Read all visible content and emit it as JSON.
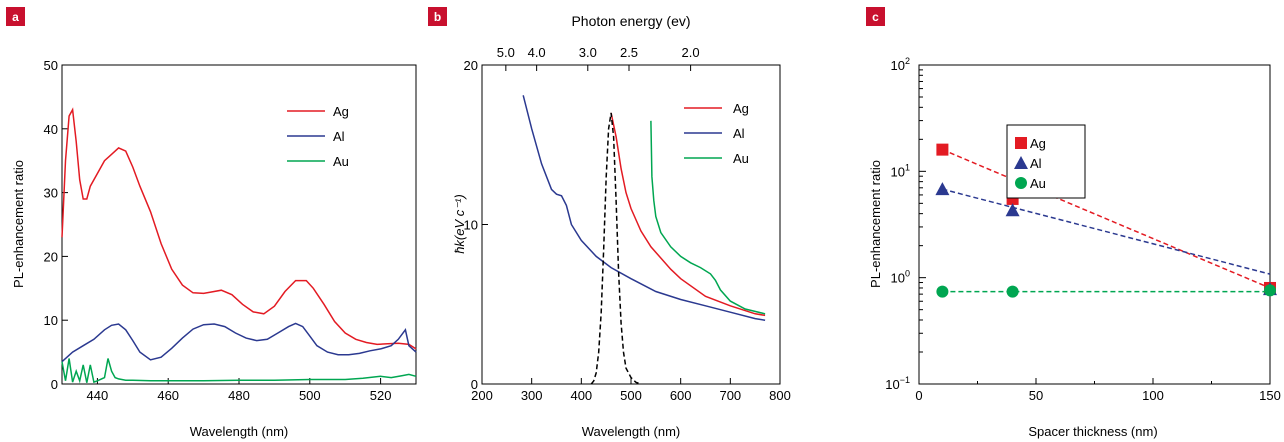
{
  "colors": {
    "ag": "#e31b23",
    "al": "#2b3990",
    "au": "#00a651",
    "badge": "#c8102e",
    "peak": "#000000"
  },
  "chart_data": [
    {
      "panel": "a",
      "type": "line",
      "xlabel": "Wavelength (nm)",
      "ylabel": "PL-enhancement ratio",
      "xlim": [
        430,
        530
      ],
      "ylim": [
        0,
        50
      ],
      "xticks": [
        440,
        460,
        480,
        500,
        520
      ],
      "yticks": [
        0,
        10,
        20,
        30,
        40,
        50
      ],
      "legend": "top-right",
      "series": [
        {
          "name": "Ag",
          "color": "#e31b23",
          "x": [
            430,
            431,
            432,
            433,
            434,
            435,
            436,
            437,
            438,
            440,
            442,
            444,
            446,
            448,
            450,
            452,
            455,
            458,
            461,
            464,
            467,
            470,
            472,
            475,
            478,
            481,
            484,
            487,
            490,
            493,
            496,
            499,
            501,
            504,
            507,
            510,
            513,
            516,
            519,
            522,
            525,
            528,
            530
          ],
          "y": [
            23,
            35,
            42,
            43,
            38,
            32,
            29,
            29,
            31,
            33,
            35,
            36,
            37,
            36.5,
            34,
            31,
            27,
            22,
            18,
            15.5,
            14.3,
            14.2,
            14.4,
            14.7,
            14,
            12.5,
            11.3,
            11,
            12.2,
            14.5,
            16.2,
            16.2,
            15,
            12.5,
            9.8,
            8,
            7,
            6.5,
            6.2,
            6.3,
            6.4,
            6.2,
            5.5
          ]
        },
        {
          "name": "Al",
          "color": "#2b3990",
          "x": [
            430,
            433,
            436,
            439,
            442,
            444,
            446,
            448,
            450,
            452,
            455,
            458,
            461,
            464,
            467,
            470,
            473,
            476,
            479,
            482,
            485,
            488,
            491,
            494,
            496,
            498,
            500,
            502,
            505,
            508,
            511,
            514,
            517,
            520,
            523,
            525,
            527,
            528,
            530
          ],
          "y": [
            3.5,
            5,
            6,
            7,
            8.5,
            9.2,
            9.4,
            8.5,
            6.8,
            5,
            3.8,
            4.2,
            5.6,
            7.2,
            8.6,
            9.3,
            9.4,
            9,
            8,
            7.2,
            6.8,
            7,
            8,
            9,
            9.5,
            9,
            7.5,
            6,
            5,
            4.6,
            4.6,
            4.8,
            5.2,
            5.5,
            6,
            7,
            8.5,
            6,
            5
          ]
        },
        {
          "name": "Au",
          "color": "#00a651",
          "x": [
            430,
            431,
            432,
            433,
            434,
            435,
            436,
            437,
            438,
            439,
            440,
            442,
            443,
            444,
            445,
            446,
            448,
            450,
            455,
            460,
            470,
            480,
            490,
            500,
            510,
            515,
            520,
            523,
            526,
            528,
            530
          ],
          "y": [
            3.5,
            0.5,
            4,
            0.3,
            2,
            0.5,
            3,
            0.2,
            3,
            0.3,
            0.5,
            1,
            4,
            2,
            1,
            0.8,
            0.6,
            0.6,
            0.5,
            0.5,
            0.5,
            0.6,
            0.6,
            0.7,
            0.7,
            0.9,
            1.2,
            1,
            1.3,
            1.5,
            1.2
          ]
        }
      ]
    },
    {
      "panel": "b",
      "type": "line",
      "title": "Photon energy (ev)",
      "xlabel": "Wavelength (nm)",
      "ylabel": "ħk(eV c⁻¹)",
      "xlim": [
        200,
        800
      ],
      "ylim": [
        0,
        20
      ],
      "xticks": [
        200,
        300,
        400,
        500,
        600,
        700,
        800
      ],
      "yticks": [
        0,
        10,
        20
      ],
      "top_ticks": [
        {
          "label": "5.0",
          "wavelength": 248
        },
        {
          "label": "4.0",
          "wavelength": 310
        },
        {
          "label": "3.0",
          "wavelength": 413
        },
        {
          "label": "2.5",
          "wavelength": 496
        },
        {
          "label": "2.0",
          "wavelength": 620
        }
      ],
      "legend": "top-right",
      "series": [
        {
          "name": "Ag",
          "color": "#e31b23",
          "x": [
            460,
            470,
            480,
            490,
            500,
            520,
            540,
            560,
            580,
            600,
            650,
            700,
            750,
            770
          ],
          "y": [
            17,
            15.5,
            13.5,
            12,
            11,
            9.6,
            8.6,
            7.9,
            7.2,
            6.6,
            5.5,
            4.9,
            4.4,
            4.3
          ]
        },
        {
          "name": "Al",
          "color": "#2b3990",
          "x": [
            283,
            300,
            320,
            340,
            350,
            360,
            370,
            380,
            400,
            430,
            460,
            500,
            550,
            600,
            650,
            700,
            750,
            770
          ],
          "y": [
            18.1,
            16,
            13.8,
            12.2,
            11.9,
            11.8,
            11.2,
            10,
            9,
            8,
            7.3,
            6.6,
            5.8,
            5.3,
            4.9,
            4.5,
            4.1,
            4
          ]
        },
        {
          "name": "Au",
          "color": "#00a651",
          "x": [
            540,
            542,
            546,
            550,
            560,
            580,
            600,
            620,
            640,
            660,
            670,
            680,
            700,
            730,
            770
          ],
          "y": [
            16.5,
            13,
            11.5,
            10.5,
            9.5,
            8.6,
            8,
            7.6,
            7.3,
            6.9,
            6.5,
            5.9,
            5.2,
            4.7,
            4.4
          ]
        },
        {
          "name": "",
          "color": "#000000",
          "dashed": true,
          "x": [
            420,
            425,
            430,
            435,
            440,
            445,
            450,
            455,
            460,
            465,
            470,
            475,
            480,
            485,
            490,
            500,
            510,
            520
          ],
          "y": [
            0,
            0.2,
            0.7,
            2,
            4.5,
            8.5,
            13,
            16,
            17,
            15.5,
            11.5,
            7,
            3.8,
            2,
            1,
            0.4,
            0.1,
            0
          ]
        }
      ]
    },
    {
      "panel": "c",
      "type": "scatter",
      "xlabel": "Spacer thickness (nm)",
      "ylabel": "PL-enhancement ratio",
      "xlim": [
        0,
        150
      ],
      "ylim_log10": [
        -1,
        2
      ],
      "log_y": true,
      "xticks": [
        0,
        50,
        100,
        150
      ],
      "yticks": [
        {
          "base": "10",
          "exp": "−1",
          "value": 0.1
        },
        {
          "base": "10",
          "exp": "0",
          "value": 1
        },
        {
          "base": "10",
          "exp": "1",
          "value": 10
        },
        {
          "base": "10",
          "exp": "2",
          "value": 100
        }
      ],
      "legend": "top-center",
      "series": [
        {
          "name": "Ag",
          "color": "#e31b23",
          "marker": "square",
          "x": [
            10,
            40,
            150
          ],
          "y": [
            16,
            5.5,
            0.8
          ],
          "fit": [
            [
              10,
              16
            ],
            [
              150,
              0.8
            ]
          ]
        },
        {
          "name": "Al",
          "color": "#2b3990",
          "marker": "triangle",
          "x": [
            10,
            40,
            150
          ],
          "y": [
            6.8,
            4.3,
            0.78
          ],
          "fit": [
            [
              10,
              6.8
            ],
            [
              150,
              1.08
            ]
          ]
        },
        {
          "name": "Au",
          "color": "#00a651",
          "marker": "circle",
          "x": [
            10,
            40,
            150
          ],
          "y": [
            0.74,
            0.74,
            0.76
          ],
          "fit": [
            [
              10,
              0.74
            ],
            [
              150,
              0.74
            ]
          ]
        }
      ]
    }
  ]
}
